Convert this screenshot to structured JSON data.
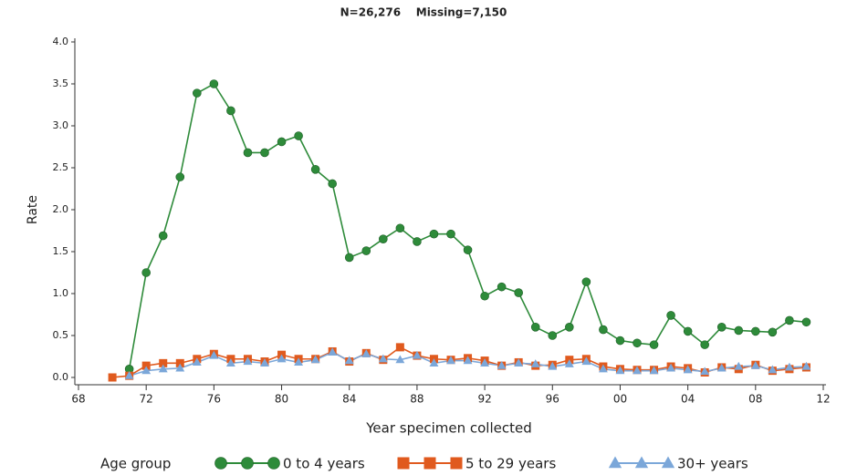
{
  "chart_data": {
    "type": "line",
    "title": "N=26,276    Missing=7,150",
    "xlabel": "Year specimen collected",
    "ylabel": "Rate",
    "legend_title": "Age group",
    "legend": "bottom",
    "x": [
      1970,
      1971,
      1972,
      1973,
      1974,
      1975,
      1976,
      1977,
      1978,
      1979,
      1980,
      1981,
      1982,
      1983,
      1984,
      1985,
      1986,
      1987,
      1988,
      1989,
      1990,
      1991,
      1992,
      1993,
      1994,
      1995,
      1996,
      1997,
      1998,
      1999,
      2000,
      2001,
      2002,
      2003,
      2004,
      2005,
      2006,
      2007,
      2008,
      2009,
      2010,
      2011
    ],
    "xlim": [
      1968,
      2012
    ],
    "xticks": [
      {
        "value": 1968,
        "label": "68"
      },
      {
        "value": 1972,
        "label": "72"
      },
      {
        "value": 1976,
        "label": "76"
      },
      {
        "value": 1980,
        "label": "80"
      },
      {
        "value": 1984,
        "label": "84"
      },
      {
        "value": 1988,
        "label": "88"
      },
      {
        "value": 1992,
        "label": "92"
      },
      {
        "value": 1996,
        "label": "96"
      },
      {
        "value": 2000,
        "label": "00"
      },
      {
        "value": 2004,
        "label": "04"
      },
      {
        "value": 2008,
        "label": "08"
      },
      {
        "value": 2012,
        "label": "12"
      }
    ],
    "ylim": [
      0,
      4
    ],
    "yticks": [
      {
        "value": 0,
        "label": "0.0"
      },
      0.5,
      {
        "value": 1,
        "label": "1.0"
      },
      1.5,
      {
        "value": 2,
        "label": "2.0"
      },
      2.5,
      {
        "value": 3,
        "label": "3.0"
      },
      3.5,
      {
        "value": 4,
        "label": "4.0"
      }
    ],
    "series": [
      {
        "name": "0 to 4 years",
        "color": "#2e8b3a",
        "marker": "circle",
        "values": [
          null,
          0.1,
          1.25,
          1.69,
          2.39,
          3.39,
          3.5,
          3.18,
          2.68,
          2.68,
          2.81,
          2.88,
          2.48,
          2.31,
          1.43,
          1.51,
          1.65,
          1.78,
          1.62,
          1.71,
          1.71,
          1.52,
          0.97,
          1.08,
          1.01,
          0.6,
          0.5,
          0.6,
          1.14,
          0.57,
          0.44,
          0.41,
          0.39,
          0.74,
          0.55,
          0.39,
          0.6,
          0.56,
          0.55,
          0.54,
          0.68,
          0.66
        ]
      },
      {
        "name": "5 to 29 years",
        "color": "#e05a1e",
        "marker": "square",
        "values": [
          0.0,
          0.02,
          0.14,
          0.17,
          0.17,
          0.22,
          0.28,
          0.22,
          0.22,
          0.19,
          0.27,
          0.22,
          0.22,
          0.31,
          0.19,
          0.29,
          0.21,
          0.36,
          0.26,
          0.22,
          0.21,
          0.23,
          0.2,
          0.14,
          0.18,
          0.14,
          0.15,
          0.21,
          0.22,
          0.13,
          0.1,
          0.09,
          0.09,
          0.13,
          0.11,
          0.06,
          0.12,
          0.1,
          0.15,
          0.08,
          0.1,
          0.12
        ]
      },
      {
        "name": "30+ years",
        "color": "#7ba7d9",
        "marker": "triangle",
        "values": [
          null,
          0.02,
          0.08,
          0.1,
          0.11,
          0.18,
          0.26,
          0.17,
          0.19,
          0.17,
          0.22,
          0.18,
          0.21,
          0.3,
          0.2,
          0.28,
          0.22,
          0.21,
          0.26,
          0.17,
          0.2,
          0.2,
          0.17,
          0.14,
          0.17,
          0.16,
          0.13,
          0.16,
          0.19,
          0.1,
          0.08,
          0.08,
          0.08,
          0.11,
          0.09,
          0.07,
          0.11,
          0.13,
          0.14,
          0.09,
          0.12,
          0.13
        ]
      }
    ]
  }
}
